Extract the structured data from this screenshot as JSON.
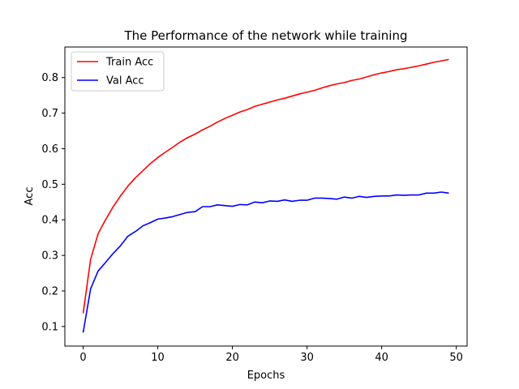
{
  "chart_data": {
    "type": "line",
    "title": "The Performance of the network while training",
    "xlabel": "Epochs",
    "ylabel": "Acc",
    "xlim": [
      -2.45,
      51.45
    ],
    "ylim": [
      0.045,
      0.886
    ],
    "xticks": [
      0,
      10,
      20,
      30,
      40,
      50
    ],
    "yticks": [
      0.1,
      0.2,
      0.3,
      0.4,
      0.5,
      0.6,
      0.7,
      0.8
    ],
    "grid": false,
    "legend_position": "top-left",
    "x": [
      0,
      1,
      2,
      3,
      4,
      5,
      6,
      7,
      8,
      9,
      10,
      11,
      12,
      13,
      14,
      15,
      16,
      17,
      18,
      19,
      20,
      21,
      22,
      23,
      24,
      25,
      26,
      27,
      28,
      29,
      30,
      31,
      32,
      33,
      34,
      35,
      36,
      37,
      38,
      39,
      40,
      41,
      42,
      43,
      44,
      45,
      46,
      47,
      48,
      49
    ],
    "series": [
      {
        "name": "Train Acc",
        "color": "#ff0000",
        "values": [
          0.137,
          0.289,
          0.361,
          0.4,
          0.436,
          0.467,
          0.495,
          0.518,
          0.538,
          0.558,
          0.575,
          0.59,
          0.604,
          0.619,
          0.631,
          0.641,
          0.653,
          0.663,
          0.675,
          0.685,
          0.694,
          0.703,
          0.71,
          0.719,
          0.725,
          0.731,
          0.737,
          0.742,
          0.748,
          0.754,
          0.759,
          0.764,
          0.771,
          0.777,
          0.782,
          0.786,
          0.792,
          0.796,
          0.802,
          0.808,
          0.813,
          0.817,
          0.822,
          0.825,
          0.829,
          0.833,
          0.838,
          0.843,
          0.847,
          0.851
        ]
      },
      {
        "name": "Val Acc",
        "color": "#0000ff",
        "values": [
          0.083,
          0.206,
          0.256,
          0.28,
          0.305,
          0.327,
          0.354,
          0.367,
          0.383,
          0.392,
          0.402,
          0.405,
          0.409,
          0.415,
          0.421,
          0.423,
          0.437,
          0.437,
          0.442,
          0.44,
          0.438,
          0.443,
          0.442,
          0.45,
          0.448,
          0.453,
          0.452,
          0.456,
          0.452,
          0.455,
          0.455,
          0.461,
          0.461,
          0.46,
          0.458,
          0.464,
          0.461,
          0.466,
          0.463,
          0.466,
          0.467,
          0.467,
          0.47,
          0.469,
          0.47,
          0.47,
          0.475,
          0.475,
          0.478,
          0.475
        ]
      }
    ]
  }
}
